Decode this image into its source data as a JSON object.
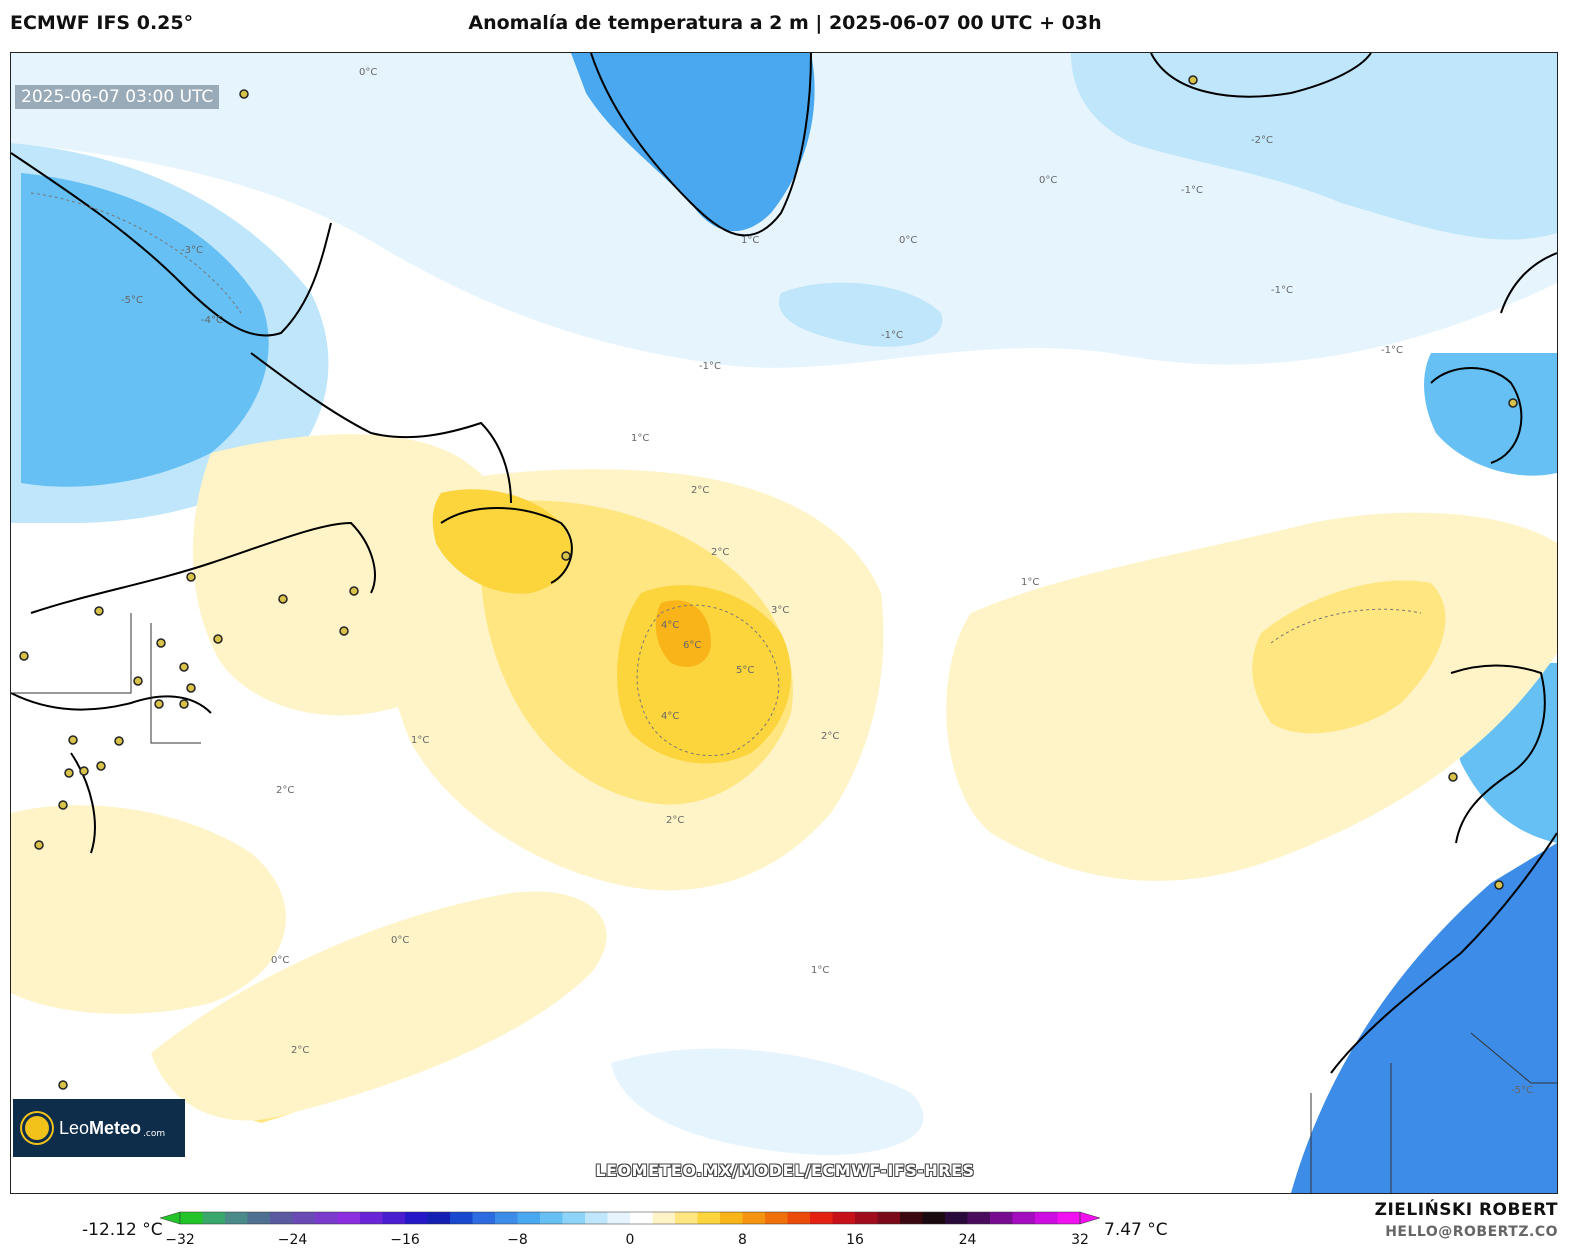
{
  "header": {
    "model": "ECMWF IFS 0.25°",
    "title": "Anomalía de temperatura a 2 m | 2025-06-07 00 UTC + 03h"
  },
  "map": {
    "valid_time": "2025-06-07 03:00 UTC",
    "watermark": "LEOMETEO.MX/MODEL/ECMWF-IFS-HRES",
    "logo": {
      "name_light": "Leo",
      "name_bold": "Meteo",
      "domain": ".com"
    },
    "contour_labels": [
      "0°C",
      "1°C",
      "-1°C",
      "2°C",
      "3°C",
      "4°C",
      "5°C",
      "-2°C",
      "-3°C",
      "-4°C",
      "-5°C",
      "6°C"
    ]
  },
  "colorbar": {
    "min_label": "-12.12 °C",
    "max_label": "7.47 °C",
    "ticks": [
      "−32",
      "−24",
      "−16",
      "−8",
      "0",
      "8",
      "16",
      "24",
      "32"
    ],
    "colors": [
      "#22c42a",
      "#3aa86a",
      "#4a8a8a",
      "#4f7090",
      "#5a5aa0",
      "#6a4ab4",
      "#7a3acc",
      "#8b2ee0",
      "#6a24d8",
      "#4a1cd0",
      "#2418c8",
      "#1420b4",
      "#1848d0",
      "#2c6ce0",
      "#3c8ce8",
      "#4aa8f0",
      "#66c0f4",
      "#8ed4f8",
      "#bfe6fa",
      "#e6f5fd",
      "#ffffff",
      "#fff4c8",
      "#ffe680",
      "#fcd43c",
      "#f8b418",
      "#f49410",
      "#f0700c",
      "#ec4a0a",
      "#e42010",
      "#c81018",
      "#a00c1c",
      "#7a0a18",
      "#3c0810",
      "#1a0a10",
      "#2a0a3a",
      "#4a0c5c",
      "#780c90",
      "#a40cc0",
      "#cc0ce0",
      "#f010f0"
    ]
  },
  "credit": {
    "author": "ZIELIŃSKI ROBERT",
    "contact": "HELLO@ROBERTZ.CO"
  }
}
